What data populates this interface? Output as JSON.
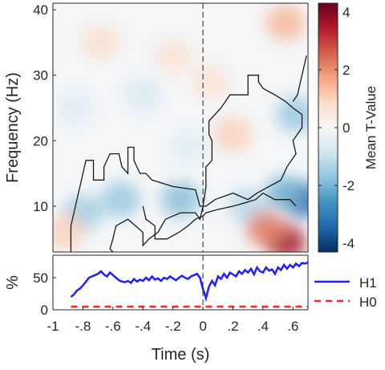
{
  "chart_data": [
    {
      "type": "heatmap",
      "xlim": [
        -1,
        0.7
      ],
      "ylim": [
        3,
        41
      ],
      "ylabel": "Frequency (Hz)",
      "y_ticks": [
        10,
        20,
        30,
        40
      ],
      "y_tick_labels": [
        "10",
        "20",
        "30",
        "40"
      ],
      "event_marker_x": 0,
      "colorbar": {
        "label": "Mean T-Value",
        "range": [
          -4.3,
          4.3
        ],
        "ticks": [
          4,
          2,
          0,
          -2,
          -4
        ],
        "tick_labels": [
          "4",
          "2",
          "0",
          "-2",
          "-4"
        ],
        "colormap": [
          "#053061",
          "#2166ac",
          "#4393c3",
          "#92c5de",
          "#d1e5f0",
          "#f7f7f7",
          "#fddbc7",
          "#f4a582",
          "#d6604d",
          "#b2182b",
          "#67001f"
        ]
      },
      "significant_cluster_outlines": [
        [
          [
            -0.88,
            3
          ],
          [
            -0.88,
            7
          ],
          [
            -0.86,
            9
          ],
          [
            -0.84,
            11
          ],
          [
            -0.82,
            13
          ],
          [
            -0.8,
            15
          ],
          [
            -0.78,
            17
          ],
          [
            -0.73,
            17
          ],
          [
            -0.73,
            14
          ],
          [
            -0.66,
            14
          ],
          [
            -0.66,
            16
          ],
          [
            -0.62,
            18
          ],
          [
            -0.56,
            18
          ],
          [
            -0.54,
            16
          ],
          [
            -0.5,
            15
          ],
          [
            -0.5,
            19
          ],
          [
            -0.46,
            19
          ],
          [
            -0.46,
            17
          ],
          [
            -0.42,
            15
          ],
          [
            -0.38,
            15
          ],
          [
            -0.34,
            14
          ],
          [
            -0.2,
            13
          ],
          [
            -0.05,
            12.5
          ],
          [
            -0.02,
            10
          ],
          [
            0.02,
            10
          ],
          [
            0.08,
            11
          ],
          [
            0.2,
            12
          ],
          [
            0.3,
            11
          ],
          [
            0.36,
            12
          ],
          [
            0.44,
            13
          ],
          [
            0.52,
            14
          ],
          [
            0.56,
            16
          ],
          [
            0.62,
            18
          ],
          [
            0.6,
            20
          ],
          [
            0.66,
            22
          ],
          [
            0.66,
            24
          ],
          [
            0.6,
            25
          ],
          [
            0.55,
            26
          ],
          [
            0.48,
            27
          ],
          [
            0.4,
            28
          ],
          [
            0.37,
            29
          ],
          [
            0.37,
            30
          ],
          [
            0.3,
            30
          ],
          [
            0.3,
            27
          ],
          [
            0.18,
            27
          ],
          [
            0.12,
            25
          ],
          [
            0.04,
            23
          ],
          [
            0.04,
            21
          ],
          [
            0.06,
            20
          ],
          [
            0.06,
            17
          ],
          [
            0.02,
            16
          ],
          [
            0.02,
            13
          ],
          [
            0.0,
            10
          ],
          [
            -0.02,
            8
          ],
          [
            -0.05,
            9
          ],
          [
            -0.15,
            9
          ],
          [
            -0.25,
            8
          ],
          [
            -0.3,
            6
          ],
          [
            -0.36,
            5
          ],
          [
            -0.4,
            4
          ],
          [
            -0.4,
            6
          ],
          [
            -0.45,
            7
          ],
          [
            -0.5,
            8
          ],
          [
            -0.58,
            7
          ],
          [
            -0.6,
            5
          ],
          [
            -0.62,
            3.5
          ],
          [
            -0.6,
            3
          ]
        ],
        [
          [
            0.62,
            10
          ],
          [
            0.58,
            11
          ],
          [
            0.48,
            11
          ],
          [
            0.4,
            12
          ],
          [
            0.35,
            11
          ],
          [
            0.28,
            10.5
          ],
          [
            0.2,
            10
          ],
          [
            0.1,
            9.5
          ],
          [
            0.02,
            9
          ],
          [
            0.0,
            8.5
          ],
          [
            -0.05,
            8
          ],
          [
            -0.1,
            7
          ],
          [
            -0.16,
            6
          ],
          [
            -0.24,
            5
          ],
          [
            -0.32,
            5
          ],
          [
            -0.32,
            7
          ],
          [
            -0.38,
            8
          ],
          [
            -0.4,
            10
          ]
        ],
        [
          [
            0.69,
            33
          ],
          [
            0.67,
            31
          ],
          [
            0.65,
            29
          ],
          [
            0.63,
            27
          ],
          [
            0.6,
            26
          ]
        ]
      ],
      "blobs": [
        {
          "x": -0.15,
          "y": 11,
          "t": -1.8
        },
        {
          "x": -0.55,
          "y": 11,
          "t": -1.6
        },
        {
          "x": -0.8,
          "y": 9,
          "t": -1.5
        },
        {
          "x": 0.66,
          "y": 11,
          "t": -3.5
        },
        {
          "x": 0.55,
          "y": 12,
          "t": -2.0
        },
        {
          "x": 0.3,
          "y": 10,
          "t": -1.2
        },
        {
          "x": 0.55,
          "y": 4.5,
          "t": 3.6
        },
        {
          "x": 0.42,
          "y": 6.5,
          "t": 2.2
        },
        {
          "x": 0.55,
          "y": 38,
          "t": 1.4
        },
        {
          "x": 0.62,
          "y": 24,
          "t": -1.6
        },
        {
          "x": 0.2,
          "y": 21,
          "t": 1.0
        },
        {
          "x": -0.92,
          "y": 6.0,
          "t": 1.0
        },
        {
          "x": -0.68,
          "y": 35,
          "t": 0.7
        },
        {
          "x": -0.2,
          "y": 33,
          "t": 0.6
        },
        {
          "x": -0.4,
          "y": 27,
          "t": -0.6
        },
        {
          "x": 0.05,
          "y": 29,
          "t": 0.6
        },
        {
          "x": -0.85,
          "y": 25,
          "t": -0.5
        },
        {
          "x": -0.1,
          "y": 19,
          "t": -0.5
        }
      ]
    },
    {
      "type": "line",
      "xlim": [
        -1,
        0.7
      ],
      "ylim": [
        0,
        85
      ],
      "ylabel": "%",
      "xlabel": "Time (s)",
      "y_ticks": [
        0,
        50
      ],
      "y_tick_labels": [
        "0",
        "50"
      ],
      "x_ticks": [
        -1,
        -0.8,
        -0.6,
        -0.4,
        -0.2,
        0,
        0.2,
        0.4,
        0.6
      ],
      "x_tick_labels": [
        "-1",
        "-.8",
        "-.6",
        "-.4",
        "-.2",
        "0",
        ".2",
        ".4",
        ".6"
      ],
      "event_marker_x": 0,
      "series": [
        {
          "name": "H1",
          "color": "#1f1fff",
          "style": "solid",
          "x": [
            -0.88,
            -0.86,
            -0.84,
            -0.82,
            -0.8,
            -0.78,
            -0.76,
            -0.74,
            -0.72,
            -0.7,
            -0.68,
            -0.66,
            -0.64,
            -0.62,
            -0.6,
            -0.58,
            -0.56,
            -0.54,
            -0.52,
            -0.5,
            -0.48,
            -0.46,
            -0.44,
            -0.42,
            -0.4,
            -0.38,
            -0.36,
            -0.34,
            -0.32,
            -0.3,
            -0.28,
            -0.26,
            -0.24,
            -0.22,
            -0.2,
            -0.18,
            -0.16,
            -0.14,
            -0.12,
            -0.1,
            -0.08,
            -0.06,
            -0.04,
            -0.02,
            0.0,
            0.01,
            0.02,
            0.04,
            0.06,
            0.08,
            0.1,
            0.12,
            0.14,
            0.16,
            0.18,
            0.2,
            0.22,
            0.24,
            0.26,
            0.28,
            0.3,
            0.32,
            0.34,
            0.36,
            0.38,
            0.4,
            0.42,
            0.44,
            0.46,
            0.48,
            0.5,
            0.52,
            0.54,
            0.56,
            0.58,
            0.6,
            0.62,
            0.64,
            0.66,
            0.68,
            0.7
          ],
          "values": [
            20,
            24,
            30,
            33,
            38,
            44,
            50,
            52,
            54,
            56,
            60,
            55,
            52,
            58,
            54,
            50,
            46,
            44,
            43,
            45,
            42,
            48,
            44,
            47,
            45,
            50,
            46,
            52,
            47,
            49,
            45,
            50,
            48,
            52,
            49,
            46,
            50,
            53,
            50,
            48,
            52,
            54,
            56,
            50,
            32,
            26,
            18,
            36,
            45,
            38,
            52,
            48,
            56,
            50,
            58,
            55,
            52,
            60,
            56,
            62,
            58,
            64,
            55,
            66,
            60,
            58,
            66,
            61,
            63,
            56,
            66,
            62,
            70,
            64,
            70,
            66,
            72,
            68,
            73,
            72,
            74
          ]
        },
        {
          "name": "H0",
          "color": "#ff2222",
          "style": "dashed",
          "x": [
            -0.88,
            0.7
          ],
          "values": [
            5,
            5
          ]
        }
      ]
    }
  ]
}
